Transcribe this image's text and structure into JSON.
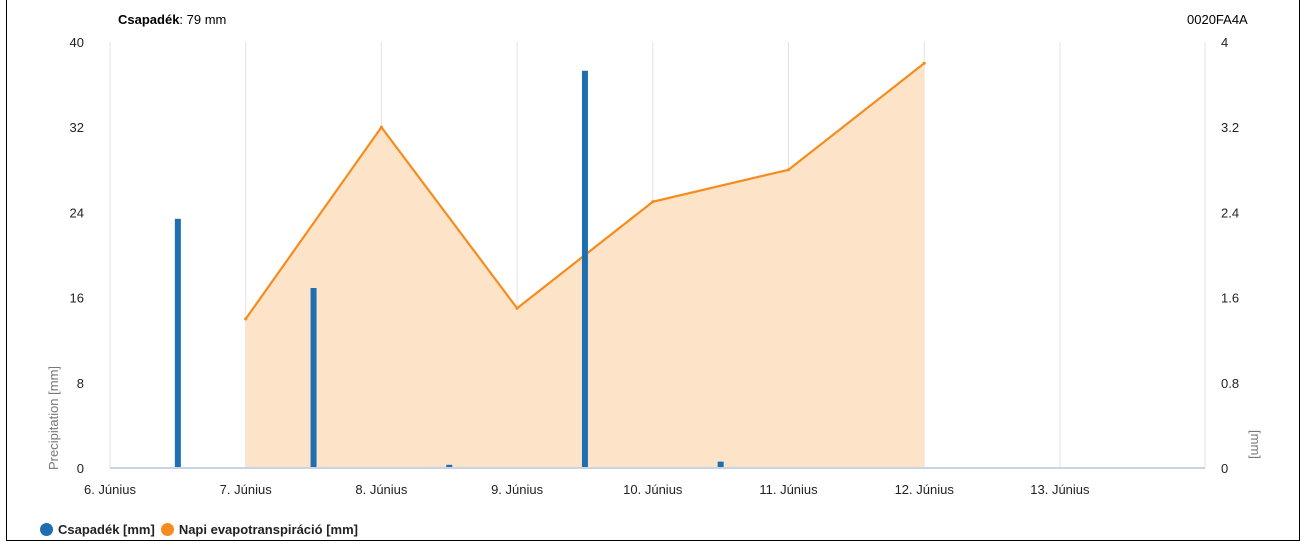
{
  "header": {
    "total_label": "Csapadék",
    "total_value": ": 79 mm",
    "device_id": "0020FA4A"
  },
  "colors": {
    "precip": "#1f6fb0",
    "et_line": "#f78c1e",
    "et_fill": "#fde3c8",
    "grid": "#e3e3e3",
    "baseline": "#c8d3e6"
  },
  "chart_data": {
    "type": "bar",
    "x_categories": [
      "6. Június",
      "7. Június",
      "8. Június",
      "9. Június",
      "10. Június",
      "11. Június",
      "12. Június",
      "13. Június"
    ],
    "ylabel_left": "Precipitation [mm]",
    "ylabel_right": "[mm]",
    "y_left": {
      "min": 0,
      "max": 40,
      "ticks": [
        "0",
        "8",
        "16",
        "24",
        "32",
        "40"
      ]
    },
    "y_right": {
      "min": 0,
      "max": 4,
      "ticks": [
        "0",
        "0.8",
        "1.6",
        "2.4",
        "3.2",
        "4"
      ]
    },
    "grid": true,
    "legend_position": "bottom-left",
    "series": [
      {
        "name": "Csapadék [mm]",
        "kind": "bar",
        "axis": "left",
        "points": [
          {
            "x": 0.5,
            "y": 23.4
          },
          {
            "x": 1.5,
            "y": 16.9
          },
          {
            "x": 2.5,
            "y": 0.3
          },
          {
            "x": 3.5,
            "y": 37.3
          },
          {
            "x": 4.5,
            "y": 0.6
          }
        ]
      },
      {
        "name": "Napi evapotranspiráció [mm]",
        "kind": "area",
        "axis": "right",
        "points": [
          {
            "x": 1,
            "y": 1.4
          },
          {
            "x": 2,
            "y": 3.2
          },
          {
            "x": 3,
            "y": 1.5
          },
          {
            "x": 4,
            "y": 2.5
          },
          {
            "x": 5,
            "y": 2.8
          },
          {
            "x": 6,
            "y": 3.8
          }
        ]
      }
    ]
  }
}
